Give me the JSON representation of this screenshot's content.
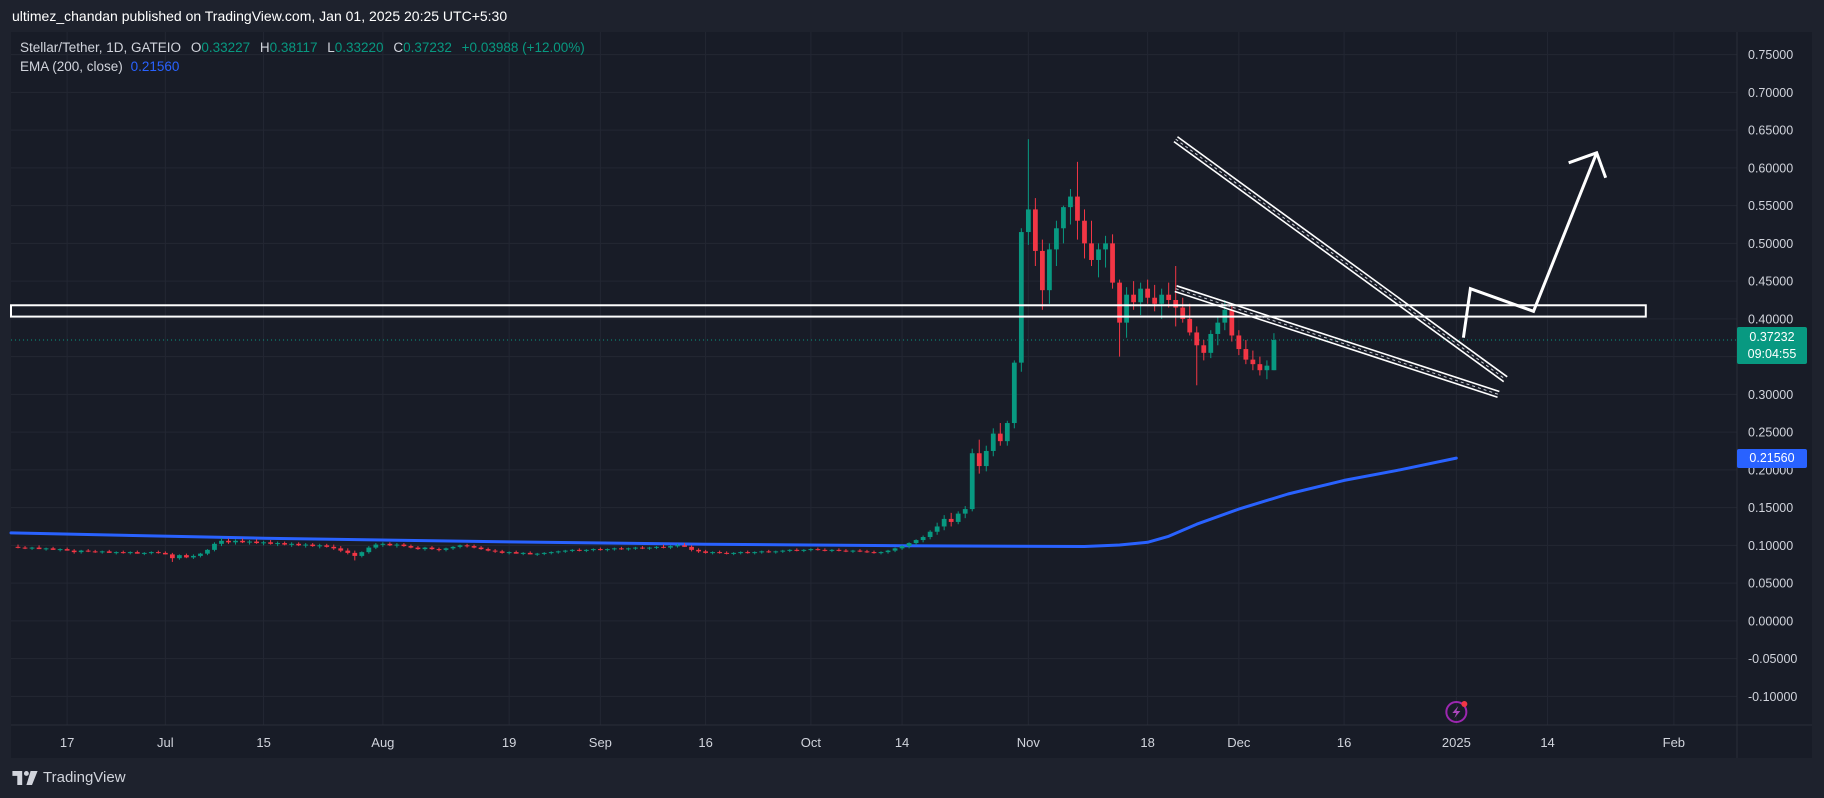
{
  "header": {
    "published_text": "ultimez_chandan published on TradingView.com, Jan 01, 2025 20:25 UTC+5:30"
  },
  "legend": {
    "symbol": "Stellar/Tether, 1D, GATEIO",
    "o_label": "O",
    "o_value": "0.33227",
    "h_label": "H",
    "h_value": "0.38117",
    "l_label": "L",
    "l_value": "0.33220",
    "c_label": "C",
    "c_value": "0.37232",
    "change": "+0.03988 (+12.00%)",
    "ema_label": "EMA (200, close)",
    "ema_value": "0.21560"
  },
  "price_tag": {
    "price": "0.37232",
    "countdown": "09:04:55",
    "color": "#089981"
  },
  "ema_tag": {
    "value": "0.21560",
    "color": "#2962ff"
  },
  "footer": {
    "brand": "TradingView"
  },
  "colors": {
    "background": "#181c27",
    "up": "#089981",
    "down": "#f23645",
    "ema": "#2962ff",
    "drawing": "#ffffff"
  },
  "chart_data": {
    "type": "candlestick",
    "title": "Stellar/Tether, 1D, GATEIO",
    "y_ticks": [
      "0.75000",
      "0.70000",
      "0.65000",
      "0.60000",
      "0.55000",
      "0.50000",
      "0.45000",
      "0.40000",
      "0.35000",
      "0.30000",
      "0.25000",
      "0.20000",
      "0.15000",
      "0.10000",
      "0.05000",
      "0.00000",
      "-0.05000",
      "-0.10000"
    ],
    "y_tick_values": [
      0.75,
      0.7,
      0.65,
      0.6,
      0.55,
      0.5,
      0.45,
      0.4,
      0.35,
      0.3,
      0.25,
      0.2,
      0.15,
      0.1,
      0.05,
      0.0,
      -0.05,
      -0.1
    ],
    "ylim": [
      -0.138,
      0.78
    ],
    "x_ticks": [
      {
        "label": "17",
        "date": "2024-06-17"
      },
      {
        "label": "Jul",
        "date": "2024-07-01"
      },
      {
        "label": "15",
        "date": "2024-07-15"
      },
      {
        "label": "Aug",
        "date": "2024-08-01"
      },
      {
        "label": "19",
        "date": "2024-08-19"
      },
      {
        "label": "Sep",
        "date": "2024-09-01"
      },
      {
        "label": "16",
        "date": "2024-09-16"
      },
      {
        "label": "Oct",
        "date": "2024-10-01"
      },
      {
        "label": "14",
        "date": "2024-10-14"
      },
      {
        "label": "Nov",
        "date": "2024-11-01"
      },
      {
        "label": "18",
        "date": "2024-11-18"
      },
      {
        "label": "Dec",
        "date": "2024-12-01"
      },
      {
        "label": "16",
        "date": "2024-12-16"
      },
      {
        "label": "2025",
        "date": "2025-01-01"
      },
      {
        "label": "14",
        "date": "2025-01-14"
      },
      {
        "label": "Feb",
        "date": "2025-02-01"
      }
    ],
    "xlim": [
      "2024-06-09",
      "2025-02-10"
    ],
    "ohlc_start_date": "2024-06-10",
    "ohlc": [
      [
        0.098,
        0.101,
        0.096,
        0.097
      ],
      [
        0.097,
        0.099,
        0.095,
        0.096
      ],
      [
        0.096,
        0.098,
        0.094,
        0.097
      ],
      [
        0.097,
        0.1,
        0.095,
        0.095
      ],
      [
        0.095,
        0.097,
        0.093,
        0.096
      ],
      [
        0.096,
        0.098,
        0.094,
        0.094
      ],
      [
        0.094,
        0.096,
        0.092,
        0.095
      ],
      [
        0.095,
        0.097,
        0.093,
        0.093
      ],
      [
        0.093,
        0.095,
        0.089,
        0.091
      ],
      [
        0.091,
        0.094,
        0.089,
        0.093
      ],
      [
        0.093,
        0.095,
        0.091,
        0.092
      ],
      [
        0.092,
        0.094,
        0.09,
        0.091
      ],
      [
        0.091,
        0.093,
        0.089,
        0.092
      ],
      [
        0.092,
        0.094,
        0.09,
        0.09
      ],
      [
        0.09,
        0.092,
        0.088,
        0.091
      ],
      [
        0.091,
        0.093,
        0.089,
        0.09
      ],
      [
        0.09,
        0.092,
        0.088,
        0.091
      ],
      [
        0.091,
        0.093,
        0.089,
        0.089
      ],
      [
        0.089,
        0.091,
        0.087,
        0.09
      ],
      [
        0.09,
        0.092,
        0.088,
        0.091
      ],
      [
        0.091,
        0.093,
        0.089,
        0.09
      ],
      [
        0.09,
        0.092,
        0.088,
        0.088
      ],
      [
        0.088,
        0.09,
        0.078,
        0.083
      ],
      [
        0.083,
        0.088,
        0.081,
        0.087
      ],
      [
        0.087,
        0.089,
        0.083,
        0.084
      ],
      [
        0.084,
        0.088,
        0.082,
        0.086
      ],
      [
        0.086,
        0.09,
        0.084,
        0.089
      ],
      [
        0.089,
        0.095,
        0.087,
        0.094
      ],
      [
        0.094,
        0.104,
        0.092,
        0.102
      ],
      [
        0.102,
        0.11,
        0.099,
        0.106
      ],
      [
        0.106,
        0.109,
        0.102,
        0.104
      ],
      [
        0.104,
        0.108,
        0.101,
        0.106
      ],
      [
        0.106,
        0.109,
        0.103,
        0.104
      ],
      [
        0.104,
        0.107,
        0.101,
        0.105
      ],
      [
        0.105,
        0.108,
        0.102,
        0.103
      ],
      [
        0.103,
        0.106,
        0.1,
        0.104
      ],
      [
        0.104,
        0.107,
        0.101,
        0.102
      ],
      [
        0.102,
        0.105,
        0.099,
        0.103
      ],
      [
        0.103,
        0.105,
        0.1,
        0.101
      ],
      [
        0.101,
        0.104,
        0.098,
        0.102
      ],
      [
        0.102,
        0.104,
        0.099,
        0.1
      ],
      [
        0.1,
        0.103,
        0.097,
        0.101
      ],
      [
        0.101,
        0.103,
        0.098,
        0.099
      ],
      [
        0.099,
        0.102,
        0.096,
        0.1
      ],
      [
        0.1,
        0.102,
        0.097,
        0.098
      ],
      [
        0.098,
        0.101,
        0.094,
        0.096
      ],
      [
        0.096,
        0.099,
        0.091,
        0.093
      ],
      [
        0.093,
        0.096,
        0.088,
        0.09
      ],
      [
        0.09,
        0.093,
        0.08,
        0.086
      ],
      [
        0.086,
        0.092,
        0.084,
        0.091
      ],
      [
        0.091,
        0.099,
        0.089,
        0.097
      ],
      [
        0.097,
        0.103,
        0.095,
        0.101
      ],
      [
        0.101,
        0.104,
        0.098,
        0.102
      ],
      [
        0.102,
        0.104,
        0.099,
        0.1
      ],
      [
        0.1,
        0.103,
        0.097,
        0.101
      ],
      [
        0.101,
        0.103,
        0.098,
        0.099
      ],
      [
        0.099,
        0.101,
        0.096,
        0.097
      ],
      [
        0.097,
        0.099,
        0.094,
        0.095
      ],
      [
        0.095,
        0.098,
        0.093,
        0.097
      ],
      [
        0.097,
        0.099,
        0.094,
        0.095
      ],
      [
        0.095,
        0.097,
        0.092,
        0.094
      ],
      [
        0.094,
        0.097,
        0.092,
        0.096
      ],
      [
        0.096,
        0.099,
        0.094,
        0.098
      ],
      [
        0.098,
        0.101,
        0.096,
        0.1
      ],
      [
        0.1,
        0.102,
        0.097,
        0.099
      ],
      [
        0.099,
        0.101,
        0.096,
        0.097
      ],
      [
        0.097,
        0.099,
        0.094,
        0.095
      ],
      [
        0.095,
        0.097,
        0.092,
        0.093
      ],
      [
        0.093,
        0.095,
        0.09,
        0.092
      ],
      [
        0.092,
        0.094,
        0.089,
        0.09
      ],
      [
        0.09,
        0.092,
        0.088,
        0.091
      ],
      [
        0.091,
        0.093,
        0.089,
        0.089
      ],
      [
        0.089,
        0.091,
        0.087,
        0.09
      ],
      [
        0.09,
        0.092,
        0.088,
        0.088
      ],
      [
        0.088,
        0.09,
        0.086,
        0.089
      ],
      [
        0.089,
        0.091,
        0.087,
        0.09
      ],
      [
        0.09,
        0.092,
        0.088,
        0.091
      ],
      [
        0.091,
        0.093,
        0.089,
        0.092
      ],
      [
        0.092,
        0.094,
        0.09,
        0.093
      ],
      [
        0.093,
        0.095,
        0.091,
        0.094
      ],
      [
        0.094,
        0.096,
        0.092,
        0.093
      ],
      [
        0.093,
        0.095,
        0.091,
        0.094
      ],
      [
        0.094,
        0.096,
        0.092,
        0.095
      ],
      [
        0.095,
        0.097,
        0.093,
        0.094
      ],
      [
        0.094,
        0.096,
        0.092,
        0.095
      ],
      [
        0.095,
        0.097,
        0.093,
        0.096
      ],
      [
        0.096,
        0.098,
        0.094,
        0.095
      ],
      [
        0.095,
        0.097,
        0.093,
        0.096
      ],
      [
        0.096,
        0.098,
        0.094,
        0.097
      ],
      [
        0.097,
        0.099,
        0.095,
        0.096
      ],
      [
        0.096,
        0.098,
        0.094,
        0.097
      ],
      [
        0.097,
        0.099,
        0.095,
        0.098
      ],
      [
        0.098,
        0.101,
        0.096,
        0.097
      ],
      [
        0.097,
        0.1,
        0.095,
        0.099
      ],
      [
        0.099,
        0.102,
        0.097,
        0.1
      ],
      [
        0.1,
        0.103,
        0.098,
        0.098
      ],
      [
        0.098,
        0.1,
        0.092,
        0.094
      ],
      [
        0.094,
        0.096,
        0.09,
        0.092
      ],
      [
        0.092,
        0.094,
        0.089,
        0.09
      ],
      [
        0.09,
        0.092,
        0.088,
        0.091
      ],
      [
        0.091,
        0.093,
        0.089,
        0.09
      ],
      [
        0.09,
        0.092,
        0.088,
        0.089
      ],
      [
        0.089,
        0.091,
        0.087,
        0.09
      ],
      [
        0.09,
        0.092,
        0.088,
        0.091
      ],
      [
        0.091,
        0.093,
        0.089,
        0.09
      ],
      [
        0.09,
        0.092,
        0.088,
        0.091
      ],
      [
        0.091,
        0.093,
        0.089,
        0.092
      ],
      [
        0.092,
        0.094,
        0.09,
        0.091
      ],
      [
        0.091,
        0.093,
        0.089,
        0.092
      ],
      [
        0.092,
        0.094,
        0.09,
        0.093
      ],
      [
        0.093,
        0.095,
        0.091,
        0.094
      ],
      [
        0.094,
        0.096,
        0.092,
        0.093
      ],
      [
        0.093,
        0.095,
        0.091,
        0.094
      ],
      [
        0.094,
        0.096,
        0.092,
        0.095
      ],
      [
        0.095,
        0.097,
        0.093,
        0.094
      ],
      [
        0.094,
        0.096,
        0.092,
        0.093
      ],
      [
        0.093,
        0.095,
        0.091,
        0.094
      ],
      [
        0.094,
        0.096,
        0.092,
        0.093
      ],
      [
        0.093,
        0.095,
        0.091,
        0.092
      ],
      [
        0.092,
        0.094,
        0.09,
        0.093
      ],
      [
        0.093,
        0.095,
        0.091,
        0.092
      ],
      [
        0.092,
        0.094,
        0.09,
        0.091
      ],
      [
        0.091,
        0.093,
        0.089,
        0.09
      ],
      [
        0.09,
        0.092,
        0.088,
        0.091
      ],
      [
        0.091,
        0.094,
        0.089,
        0.093
      ],
      [
        0.093,
        0.097,
        0.091,
        0.096
      ],
      [
        0.096,
        0.1,
        0.094,
        0.099
      ],
      [
        0.099,
        0.104,
        0.096,
        0.103
      ],
      [
        0.103,
        0.108,
        0.1,
        0.107
      ],
      [
        0.107,
        0.113,
        0.104,
        0.111
      ],
      [
        0.111,
        0.12,
        0.108,
        0.118
      ],
      [
        0.118,
        0.13,
        0.114,
        0.125
      ],
      [
        0.125,
        0.14,
        0.12,
        0.135
      ],
      [
        0.135,
        0.143,
        0.125,
        0.131
      ],
      [
        0.131,
        0.145,
        0.128,
        0.142
      ],
      [
        0.142,
        0.152,
        0.136,
        0.148
      ],
      [
        0.148,
        0.228,
        0.145,
        0.222
      ],
      [
        0.222,
        0.24,
        0.195,
        0.205
      ],
      [
        0.205,
        0.232,
        0.198,
        0.225
      ],
      [
        0.225,
        0.255,
        0.218,
        0.248
      ],
      [
        0.248,
        0.262,
        0.232,
        0.238
      ],
      [
        0.238,
        0.265,
        0.232,
        0.262
      ],
      [
        0.262,
        0.345,
        0.255,
        0.342
      ],
      [
        0.342,
        0.52,
        0.33,
        0.515
      ],
      [
        0.515,
        0.638,
        0.498,
        0.545
      ],
      [
        0.545,
        0.56,
        0.47,
        0.49
      ],
      [
        0.49,
        0.505,
        0.412,
        0.438
      ],
      [
        0.438,
        0.5,
        0.42,
        0.492
      ],
      [
        0.492,
        0.53,
        0.47,
        0.52
      ],
      [
        0.52,
        0.55,
        0.5,
        0.548
      ],
      [
        0.548,
        0.572,
        0.525,
        0.562
      ],
      [
        0.562,
        0.608,
        0.505,
        0.53
      ],
      [
        0.53,
        0.545,
        0.48,
        0.5
      ],
      [
        0.5,
        0.53,
        0.47,
        0.478
      ],
      [
        0.478,
        0.5,
        0.455,
        0.492
      ],
      [
        0.492,
        0.51,
        0.468,
        0.5
      ],
      [
        0.5,
        0.512,
        0.44,
        0.448
      ],
      [
        0.448,
        0.452,
        0.35,
        0.395
      ],
      [
        0.395,
        0.442,
        0.375,
        0.432
      ],
      [
        0.432,
        0.45,
        0.412,
        0.422
      ],
      [
        0.422,
        0.448,
        0.405,
        0.44
      ],
      [
        0.44,
        0.452,
        0.42,
        0.428
      ],
      [
        0.428,
        0.445,
        0.41,
        0.42
      ],
      [
        0.42,
        0.44,
        0.4,
        0.432
      ],
      [
        0.432,
        0.448,
        0.415,
        0.425
      ],
      [
        0.425,
        0.47,
        0.39,
        0.415
      ],
      [
        0.415,
        0.428,
        0.395,
        0.4
      ],
      [
        0.4,
        0.42,
        0.378,
        0.382
      ],
      [
        0.382,
        0.39,
        0.312,
        0.365
      ],
      [
        0.365,
        0.372,
        0.345,
        0.355
      ],
      [
        0.355,
        0.385,
        0.348,
        0.38
      ],
      [
        0.38,
        0.402,
        0.365,
        0.395
      ],
      [
        0.395,
        0.425,
        0.385,
        0.412
      ],
      [
        0.412,
        0.42,
        0.37,
        0.378
      ],
      [
        0.378,
        0.385,
        0.352,
        0.36
      ],
      [
        0.36,
        0.372,
        0.34,
        0.346
      ],
      [
        0.346,
        0.358,
        0.332,
        0.34
      ],
      [
        0.34,
        0.35,
        0.325,
        0.332
      ],
      [
        0.332,
        0.345,
        0.32,
        0.338
      ],
      [
        0.332,
        0.381,
        0.332,
        0.372
      ]
    ],
    "ema": {
      "name": "EMA (200, close)",
      "points": [
        {
          "date": "2024-06-09",
          "value": 0.1165
        },
        {
          "date": "2024-07-15",
          "value": 0.1095
        },
        {
          "date": "2024-08-19",
          "value": 0.1045
        },
        {
          "date": "2024-09-16",
          "value": 0.1015
        },
        {
          "date": "2024-10-14",
          "value": 0.0995
        },
        {
          "date": "2024-11-09",
          "value": 0.0985
        },
        {
          "date": "2024-11-14",
          "value": 0.1005
        },
        {
          "date": "2024-11-18",
          "value": 0.104
        },
        {
          "date": "2024-11-21",
          "value": 0.112
        },
        {
          "date": "2024-11-25",
          "value": 0.128
        },
        {
          "date": "2024-12-01",
          "value": 0.148
        },
        {
          "date": "2024-12-08",
          "value": 0.168
        },
        {
          "date": "2024-12-16",
          "value": 0.186
        },
        {
          "date": "2024-12-24",
          "value": 0.2
        },
        {
          "date": "2025-01-01",
          "value": 0.2156
        }
      ]
    },
    "drawings": {
      "horizontal_zone": {
        "from_date": "2024-06-09",
        "to_date": "2025-01-28",
        "top": 0.418,
        "bottom": 0.403
      },
      "upper_trendline": {
        "from": {
          "date": "2024-11-22",
          "value": 0.638
        },
        "to": {
          "date": "2025-01-08",
          "value": 0.32
        }
      },
      "lower_trendline": {
        "from": {
          "date": "2024-11-22",
          "value": 0.44
        },
        "to": {
          "date": "2025-01-07",
          "value": 0.3
        }
      },
      "projection_path": [
        {
          "date": "2025-01-02",
          "value": 0.375
        },
        {
          "date": "2025-01-03",
          "value": 0.44
        },
        {
          "date": "2025-01-12",
          "value": 0.41
        },
        {
          "date": "2025-01-21",
          "value": 0.62
        }
      ]
    }
  }
}
